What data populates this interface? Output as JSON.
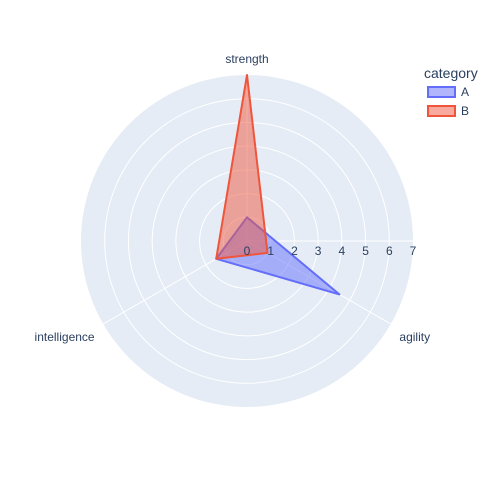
{
  "chart_data": {
    "type": "radar",
    "axes": [
      "strength",
      "agility",
      "intelligence"
    ],
    "radial_ticks": [
      "0",
      "1",
      "2",
      "3",
      "4",
      "5",
      "6",
      "7"
    ],
    "rmax": 7,
    "series": [
      {
        "name": "A",
        "values": [
          1,
          4.5,
          1.5
        ],
        "color": "#636efa"
      },
      {
        "name": "B",
        "values": [
          7,
          1,
          1.5
        ],
        "color": "#ef553b"
      }
    ],
    "legend": {
      "title": "category",
      "placement": "top-right"
    },
    "polar_bg": "#e5ecf6",
    "grid_color": "#ffffff"
  }
}
